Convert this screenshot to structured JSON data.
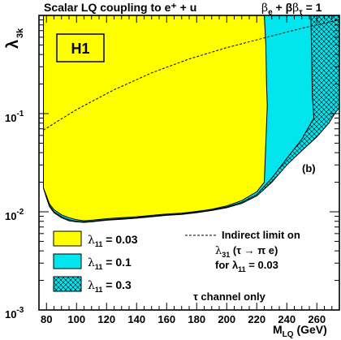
{
  "chart_data": {
    "type": "area",
    "title": "Scalar LQ coupling to e⁺ + u",
    "corner_label": "β",
    "corner_label_sub1": "e",
    "corner_label_mid": " + β",
    "corner_label_sub2": "τ",
    "corner_label_end": " = 1",
    "experiment_label": "H1",
    "panel_label": "(b)",
    "xlabel": "M",
    "xlabel_sub": "LQ",
    "xlabel_unit": " (GeV)",
    "ylabel": "λ",
    "ylabel_sub": "3k",
    "xlim": [
      75,
      275
    ],
    "ylim": [
      0.001,
      1
    ],
    "yscale": "log",
    "x_ticks": [
      80,
      100,
      120,
      140,
      160,
      180,
      200,
      220,
      240,
      260
    ],
    "y_ticks": [
      {
        "base": "10",
        "exp": "-3",
        "value": 0.001
      },
      {
        "base": "10",
        "exp": "-2",
        "value": 0.01
      },
      {
        "base": "10",
        "exp": "-1",
        "value": 0.1
      }
    ],
    "series": [
      {
        "name": "λ11 = 0.03",
        "name_main": "λ",
        "name_sub": "11",
        "name_rest": " = 0.03",
        "fill": "#ffff00",
        "pattern": "solid",
        "upper_edge": [
          [
            225,
            1
          ],
          [
            226,
            0.5
          ],
          [
            226.5,
            0.2
          ],
          [
            227,
            0.12
          ]
        ],
        "boundary": [
          [
            78,
            0.0175
          ],
          [
            80,
            0.0145
          ],
          [
            82,
            0.012
          ],
          [
            85,
            0.0105
          ],
          [
            90,
            0.0093
          ],
          [
            95,
            0.0087
          ],
          [
            100,
            0.0083
          ],
          [
            105,
            0.0081
          ],
          [
            110,
            0.0082
          ],
          [
            120,
            0.0085
          ],
          [
            130,
            0.0087
          ],
          [
            140,
            0.0089
          ],
          [
            150,
            0.0092
          ],
          [
            160,
            0.0095
          ],
          [
            170,
            0.0097
          ],
          [
            180,
            0.0101
          ],
          [
            190,
            0.0106
          ],
          [
            200,
            0.0115
          ],
          [
            210,
            0.013
          ],
          [
            220,
            0.016
          ],
          [
            225,
            0.02
          ],
          [
            230,
            0.03
          ],
          [
            235,
            0.045
          ],
          [
            240,
            0.07
          ],
          [
            245,
            0.095
          ],
          [
            247,
            0.11
          ],
          [
            248,
            0.12
          ]
        ]
      },
      {
        "name": "λ11 = 0.1",
        "name_main": "λ",
        "name_sub": "11",
        "name_rest": " = 0.1",
        "fill": "#00e5ee",
        "pattern": "solid",
        "boundary": [
          [
            78,
            0.0175
          ],
          [
            80,
            0.014
          ],
          [
            82,
            0.0115
          ],
          [
            85,
            0.01
          ],
          [
            90,
            0.0089
          ],
          [
            95,
            0.0083
          ],
          [
            100,
            0.008
          ],
          [
            105,
            0.0079
          ],
          [
            110,
            0.008
          ],
          [
            120,
            0.0083
          ],
          [
            130,
            0.0085
          ],
          [
            140,
            0.0087
          ],
          [
            150,
            0.009
          ],
          [
            160,
            0.0093
          ],
          [
            170,
            0.0095
          ],
          [
            180,
            0.0099
          ],
          [
            190,
            0.0104
          ],
          [
            200,
            0.0112
          ],
          [
            210,
            0.0125
          ],
          [
            220,
            0.015
          ],
          [
            230,
            0.022
          ],
          [
            240,
            0.035
          ],
          [
            250,
            0.055
          ],
          [
            255,
            0.075
          ],
          [
            258,
            0.09
          ],
          [
            257,
            0.15
          ],
          [
            256.5,
            0.4
          ],
          [
            256,
            1
          ]
        ]
      },
      {
        "name": "λ11 = 0.3",
        "name_main": "λ",
        "name_sub": "11",
        "name_rest": " = 0.3",
        "fill": "#00e5ee",
        "pattern": "crosshatch",
        "boundary": [
          [
            78,
            0.0175
          ],
          [
            80,
            0.0138
          ],
          [
            82,
            0.0113
          ],
          [
            85,
            0.0098
          ],
          [
            90,
            0.0087
          ],
          [
            95,
            0.0081
          ],
          [
            100,
            0.0079
          ],
          [
            105,
            0.0078
          ],
          [
            110,
            0.0079
          ],
          [
            120,
            0.0082
          ],
          [
            130,
            0.0084
          ],
          [
            140,
            0.0086
          ],
          [
            150,
            0.0089
          ],
          [
            160,
            0.0092
          ],
          [
            170,
            0.0094
          ],
          [
            180,
            0.0098
          ],
          [
            190,
            0.0103
          ],
          [
            200,
            0.011
          ],
          [
            210,
            0.0122
          ],
          [
            220,
            0.0145
          ],
          [
            230,
            0.02
          ],
          [
            240,
            0.03
          ],
          [
            250,
            0.042
          ],
          [
            260,
            0.058
          ],
          [
            268,
            0.08
          ],
          [
            272,
            0.1
          ],
          [
            275,
            0.115
          ]
        ]
      }
    ],
    "indirect_limit": {
      "line_style": "dashed",
      "points": [
        [
          78,
          0.068
        ],
        [
          100,
          0.11
        ],
        [
          125,
          0.175
        ],
        [
          150,
          0.26
        ],
        [
          175,
          0.36
        ],
        [
          200,
          0.47
        ],
        [
          225,
          0.59
        ],
        [
          250,
          0.74
        ],
        [
          275,
          0.9
        ]
      ],
      "label_line1": "Indirect limit on",
      "label_main": "λ",
      "label_sub": "31",
      "label_rest": " (τ → π e)",
      "label_line3": "for λ",
      "label_line3_sub": "11",
      "label_line3_rest": " = 0.03"
    },
    "footnote": "τ channel only",
    "legend": "bottom-left"
  }
}
